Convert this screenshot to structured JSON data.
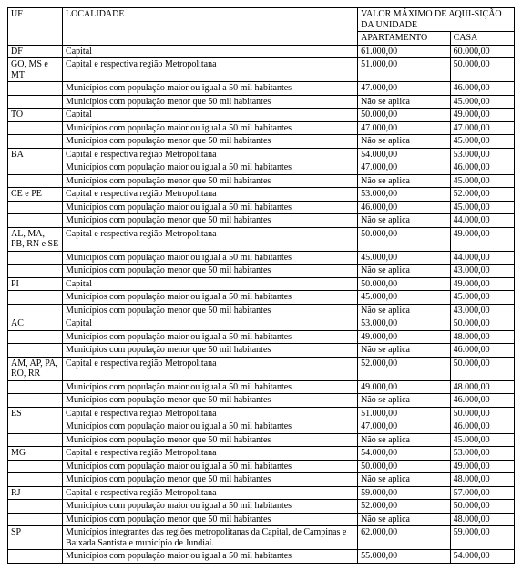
{
  "headers": {
    "uf": "UF",
    "localidade": "LOCALIDADE",
    "valor_max": "VALOR MÁXIMO DE AQUI-SIÇÃO DA UNIDADE",
    "apartamento": "APARTAMENTO",
    "casa": "CASA"
  },
  "rows": [
    {
      "uf": "DF",
      "loc": "Capital",
      "apto": "61.000,00",
      "casa": "60.000,00"
    },
    {
      "uf": "GO, MS e MT",
      "loc": "Capital e respectiva região Metropolitana",
      "apto": "51.000,00",
      "casa": "50.000,00"
    },
    {
      "uf": "",
      "loc": "Municípios com população maior ou igual a 50 mil habitantes",
      "apto": "47.000,00",
      "casa": "46.000,00"
    },
    {
      "uf": "",
      "loc": "Municípios com população menor que 50 mil habitantes",
      "apto": "Não se aplica",
      "casa": "45.000,00"
    },
    {
      "uf": "TO",
      "loc": "Capital",
      "apto": "50.000,00",
      "casa": "49.000,00"
    },
    {
      "uf": "",
      "loc": "Municípios com população maior ou igual a 50 mil habitantes",
      "apto": "47.000,00",
      "casa": "47.000,00"
    },
    {
      "uf": "",
      "loc": "Municípios com população menor que 50 mil habitantes",
      "apto": "Não se aplica",
      "casa": "45.000,00"
    },
    {
      "uf": "BA",
      "loc": "Capital e respectiva região Metropolitana",
      "apto": "54.000,00",
      "casa": "53.000,00"
    },
    {
      "uf": "",
      "loc": "Municípios com população maior ou igual a 50 mil habitantes",
      "apto": "47.000,00",
      "casa": "46.000,00"
    },
    {
      "uf": "",
      "loc": "Municípios com população menor que 50 mil habitantes",
      "apto": "Não se aplica",
      "casa": "45.000,00"
    },
    {
      "uf": "CE e PE",
      "loc": "Capital e respectiva região Metropolitana",
      "apto": "53.000,00",
      "casa": "52.000,00"
    },
    {
      "uf": "",
      "loc": "Municípios com população maior ou igual a 50 mil habitantes",
      "apto": "46.000,00",
      "casa": "45.000,00"
    },
    {
      "uf": "",
      "loc": "Municípios com população menor que 50 mil habitantes",
      "apto": "Não se aplica",
      "casa": "44.000,00"
    },
    {
      "uf": "AL, MA, PB, RN e SE",
      "loc": "Capital e respectiva região Metropolitana",
      "apto": "50.000,00",
      "casa": "49.000,00"
    },
    {
      "uf": "",
      "loc": "Municípios com população maior ou igual a 50 mil habitantes",
      "apto": "45.000,00",
      "casa": "44.000,00"
    },
    {
      "uf": "",
      "loc": "Municípios com população menor que 50 mil habitantes",
      "apto": "Não se aplica",
      "casa": "43.000,00"
    },
    {
      "uf": "PI",
      "loc": "Capital",
      "apto": "50.000,00",
      "casa": "49.000,00"
    },
    {
      "uf": "",
      "loc": "Municípios com população maior ou igual a 50 mil habitantes",
      "apto": "45.000,00",
      "casa": "45.000,00"
    },
    {
      "uf": "",
      "loc": "Municípios com população menor que 50 mil habitantes",
      "apto": "Não se aplica",
      "casa": "43.000,00"
    },
    {
      "uf": "AC",
      "loc": "Capital",
      "apto": "53.000,00",
      "casa": "50.000,00"
    },
    {
      "uf": "",
      "loc": "Municípios com população maior ou igual a 50 mil habitantes",
      "apto": "49.000,00",
      "casa": "48.000,00"
    },
    {
      "uf": "",
      "loc": "Municípios com população menor que 50 mil habitantes",
      "apto": "Não se aplica",
      "casa": "46.000,00"
    },
    {
      "uf": "AM, AP, PA, RO, RR",
      "loc": "Capital e respectiva região Metropolitana",
      "apto": "52.000,00",
      "casa": "50.000,00"
    },
    {
      "uf": "",
      "loc": "Municípios com população maior ou igual a 50 mil habitantes",
      "apto": "49.000,00",
      "casa": "48.000,00"
    },
    {
      "uf": "",
      "loc": "Municípios com população menor que 50 mil habitantes",
      "apto": "Não se aplica",
      "casa": "46.000,00"
    },
    {
      "uf": "ES",
      "loc": "Capital e respectiva região Metropolitana",
      "apto": "51.000,00",
      "casa": "50.000,00"
    },
    {
      "uf": "",
      "loc": "Municípios com população maior ou igual a 50 mil habitantes",
      "apto": "47.000,00",
      "casa": "46.000,00"
    },
    {
      "uf": "",
      "loc": "Municípios com população menor que 50 mil habitantes",
      "apto": "Não se aplica",
      "casa": "45.000,00"
    },
    {
      "uf": "MG",
      "loc": "Capital e respectiva região Metropolitana",
      "apto": "54.000,00",
      "casa": "53.000,00"
    },
    {
      "uf": "",
      "loc": "Municípios com população maior ou igual a 50 mil habitantes",
      "apto": "50.000,00",
      "casa": "49.000,00"
    },
    {
      "uf": "",
      "loc": "Municípios com população menor que 50 mil habitantes",
      "apto": "Não se aplica",
      "casa": "48.000,00"
    },
    {
      "uf": "RJ",
      "loc": "Capital e respectiva região Metropolitana",
      "apto": "59.000,00",
      "casa": "57.000,00"
    },
    {
      "uf": "",
      "loc": "Municípios com população maior ou igual a 50 mil habitantes",
      "apto": "52.000,00",
      "casa": "50.000,00"
    },
    {
      "uf": "",
      "loc": "Municípios com população menor que 50 mil habitantes",
      "apto": "Não se aplica",
      "casa": "48.000,00"
    },
    {
      "uf": "SP",
      "loc": "Municípios integrantes das regiões metropolitanas da Capital, de Campinas e Baixada Santista e município de Jundiaí.",
      "apto": "62.000,00",
      "casa": "59.000,00"
    },
    {
      "uf": "",
      "loc": "Municípios com população maior ou igual a 50 mil habitantes",
      "apto": "55.000,00",
      "casa": "54.000,00"
    }
  ]
}
